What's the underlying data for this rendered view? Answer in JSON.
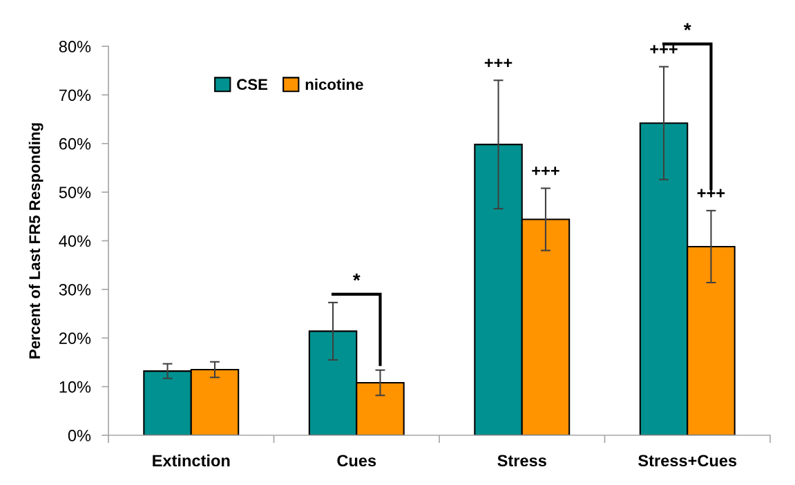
{
  "chart_data": {
    "type": "bar",
    "ylabel": "Percent of Last FR5 Responding",
    "categories": [
      "Extinction",
      "Cues",
      "Stress",
      "Stress+Cues"
    ],
    "series": [
      {
        "name": "CSE",
        "color": "#009190",
        "values": [
          13.2,
          21.4,
          59.8,
          64.2
        ],
        "errors": [
          1.5,
          5.9,
          13.2,
          11.6
        ]
      },
      {
        "name": "nicotine",
        "color": "#ff9300",
        "values": [
          13.5,
          10.8,
          44.4,
          38.8
        ],
        "errors": [
          1.6,
          2.6,
          6.4,
          7.4
        ]
      }
    ],
    "ylim": [
      0,
      80
    ],
    "yticks": [
      {
        "value": 0,
        "label": "0%"
      },
      {
        "value": 10,
        "label": "10%"
      },
      {
        "value": 20,
        "label": "20%"
      },
      {
        "value": 30,
        "label": "30%"
      },
      {
        "value": 40,
        "label": "40%"
      },
      {
        "value": 50,
        "label": "50%"
      },
      {
        "value": 60,
        "label": "60%"
      },
      {
        "value": 70,
        "label": "70%"
      },
      {
        "value": 80,
        "label": "80%"
      }
    ],
    "annotations": [
      "*",
      "+++",
      "+++",
      "*",
      "+++",
      "+++"
    ],
    "legend": "top left"
  }
}
